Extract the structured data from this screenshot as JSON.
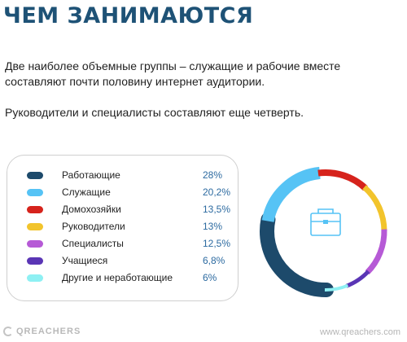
{
  "page": {
    "title": "ЧЕМ ЗАНИМАЮТСЯ",
    "paragraph1": "Две наиболее объемные группы – служащие и рабочие вместе составляют почти половину интернет аудитории.",
    "paragraph2": "Руководители и специалисты составляют еще четверть."
  },
  "legend": [
    {
      "label": "Работающие",
      "value": "28%",
      "color": "#1d4a6b"
    },
    {
      "label": "Служащие",
      "value": "20,2%",
      "color": "#56c3f5"
    },
    {
      "label": "Домохозяйки",
      "value": "13,5%",
      "color": "#d6231c"
    },
    {
      "label": "Руководители",
      "value": "13%",
      "color": "#f2c42c"
    },
    {
      "label": "Специалисты",
      "value": "12,5%",
      "color": "#b65ad6"
    },
    {
      "label": "Учащиеся",
      "value": "6,8%",
      "color": "#5a35b5"
    },
    {
      "label": "Другие и неработающие",
      "value": "6%",
      "color": "#8ef0f3"
    }
  ],
  "chart_data": {
    "type": "pie",
    "categories": [
      "Работающие",
      "Служащие",
      "Домохозяйки",
      "Руководители",
      "Специалисты",
      "Учащиеся",
      "Другие и неработающие"
    ],
    "values": [
      28,
      20.2,
      13.5,
      13,
      12.5,
      6.8,
      6
    ],
    "colors": [
      "#1d4a6b",
      "#56c3f5",
      "#d6231c",
      "#f2c42c",
      "#b65ad6",
      "#5a35b5",
      "#8ef0f3"
    ],
    "style": "donut with varying ring thickness",
    "center_icon": "briefcase-icon"
  },
  "footer": {
    "logo_text": "QREACHERS",
    "url": "www.qreachers.com"
  }
}
